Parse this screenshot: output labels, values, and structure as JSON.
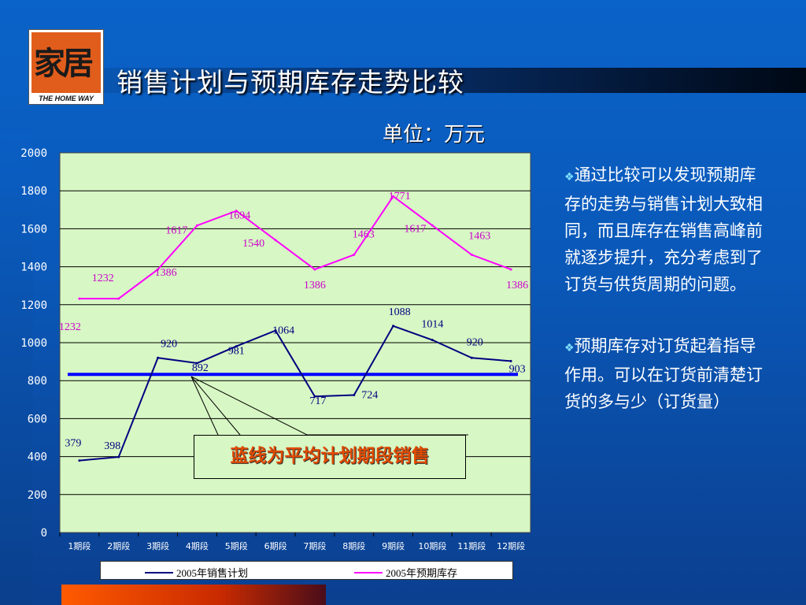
{
  "logo": {
    "glyph": "家居",
    "caption": "THE HOME WAY"
  },
  "title": "销售计划与预期库存走势比较",
  "unit": "单位：万元",
  "callout": "蓝线为平均计划期段销售",
  "notes": [
    {
      "bullet": "❖",
      "text": "通过比较可以发现预期库存的走势与销售计划大致相同，而且库存在销售高峰前就逐步提升，充分考虑到了订货与供货周期的问题。"
    },
    {
      "bullet": "❖",
      "text": "预期库存对订货起着指导作用。可以在订货前清楚订货的多与少（订货量）"
    }
  ],
  "colors": {
    "sales": "#000080",
    "inventory": "#ff00ff",
    "average": "#0000ff",
    "plot_bg": "#d7f7c4",
    "axis_text": "#ffffff"
  },
  "chart_data": {
    "type": "line",
    "categories": [
      "1期段",
      "2期段",
      "3期段",
      "4期段",
      "5期段",
      "6期段",
      "7期段",
      "8期段",
      "9期段",
      "10期段",
      "11期段",
      "12期段"
    ],
    "ylim": [
      0,
      2000
    ],
    "yticks": [
      0,
      200,
      400,
      600,
      800,
      1000,
      1200,
      1400,
      1600,
      1800,
      2000
    ],
    "grid": true,
    "legend": "bottom",
    "series": [
      {
        "name": "2005年销售计划",
        "values": [
          379,
          398,
          920,
          892,
          981,
          1064,
          717,
          724,
          1088,
          1014,
          920,
          903
        ],
        "labels": [
          "379",
          "398",
          "920",
          "892",
          "981",
          "1064",
          "717",
          "724",
          "1088",
          "1014",
          "920",
          "903"
        ]
      },
      {
        "name": "2005年预期库存",
        "values": [
          1232,
          1232,
          1386,
          1617,
          1694,
          1540,
          1386,
          1463,
          1771,
          1617,
          1463,
          1386
        ],
        "labels": [
          "1232",
          "1232",
          "1386",
          "1617",
          "1694",
          "1540",
          "1386",
          "1463",
          "1771",
          "1617",
          "1463",
          "1386"
        ]
      }
    ],
    "average_line": 833
  }
}
